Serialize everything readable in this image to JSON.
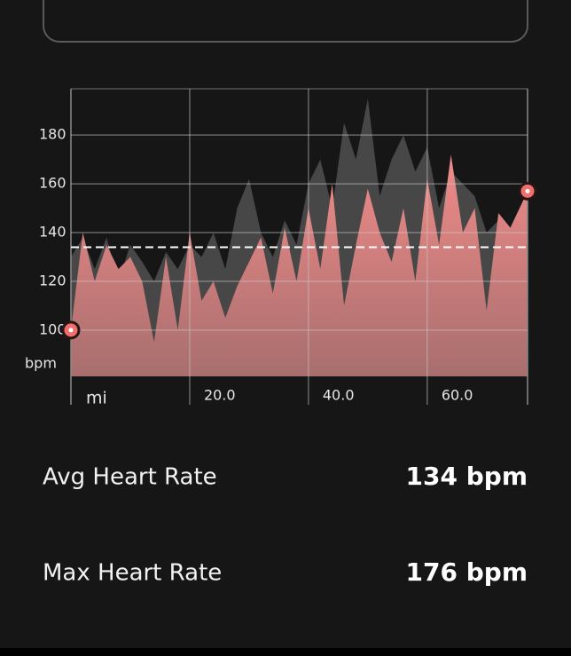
{
  "chart_data": {
    "type": "area",
    "x": [
      0,
      2,
      4,
      6,
      8,
      10,
      12,
      14,
      16,
      18,
      20,
      22,
      24,
      26,
      28,
      30,
      32,
      34,
      36,
      38,
      40,
      42,
      44,
      46,
      48,
      50,
      52,
      54,
      56,
      58,
      60,
      62,
      64,
      66,
      68,
      70,
      72,
      74,
      76.9
    ],
    "series": [
      {
        "color": "#474747",
        "values": [
          130,
          138,
          125,
          138,
          120,
          135,
          128,
          120,
          132,
          125,
          135,
          130,
          140,
          125,
          150,
          162,
          140,
          130,
          145,
          135,
          160,
          170,
          150,
          185,
          170,
          195,
          155,
          170,
          180,
          165,
          175,
          150,
          165,
          160,
          155,
          140,
          145,
          140,
          150
        ]
      },
      {
        "color": "#ef8c89",
        "values": [
          100,
          140,
          120,
          135,
          125,
          130,
          120,
          95,
          130,
          100,
          140,
          112,
          120,
          105,
          118,
          128,
          138,
          115,
          142,
          120,
          150,
          125,
          160,
          110,
          135,
          158,
          140,
          128,
          150,
          120,
          162,
          135,
          172,
          140,
          150,
          108,
          148,
          142,
          157
        ]
      }
    ],
    "reference_line": 134,
    "ylabel": "bpm",
    "xlabel": "mi",
    "xlim": [
      0,
      76.9
    ],
    "ylim": [
      81,
      199
    ],
    "yticks": [
      100,
      120,
      140,
      160,
      180
    ],
    "xticks": [
      {
        "value": 20,
        "label": "20.0"
      },
      {
        "value": 40,
        "label": "40.0"
      },
      {
        "value": 60,
        "label": "60.0"
      }
    ],
    "grid": true
  },
  "stats": [
    {
      "label": "Avg Heart Rate",
      "value": "134 bpm"
    },
    {
      "label": "Max Heart Rate",
      "value": "176 bpm"
    }
  ]
}
